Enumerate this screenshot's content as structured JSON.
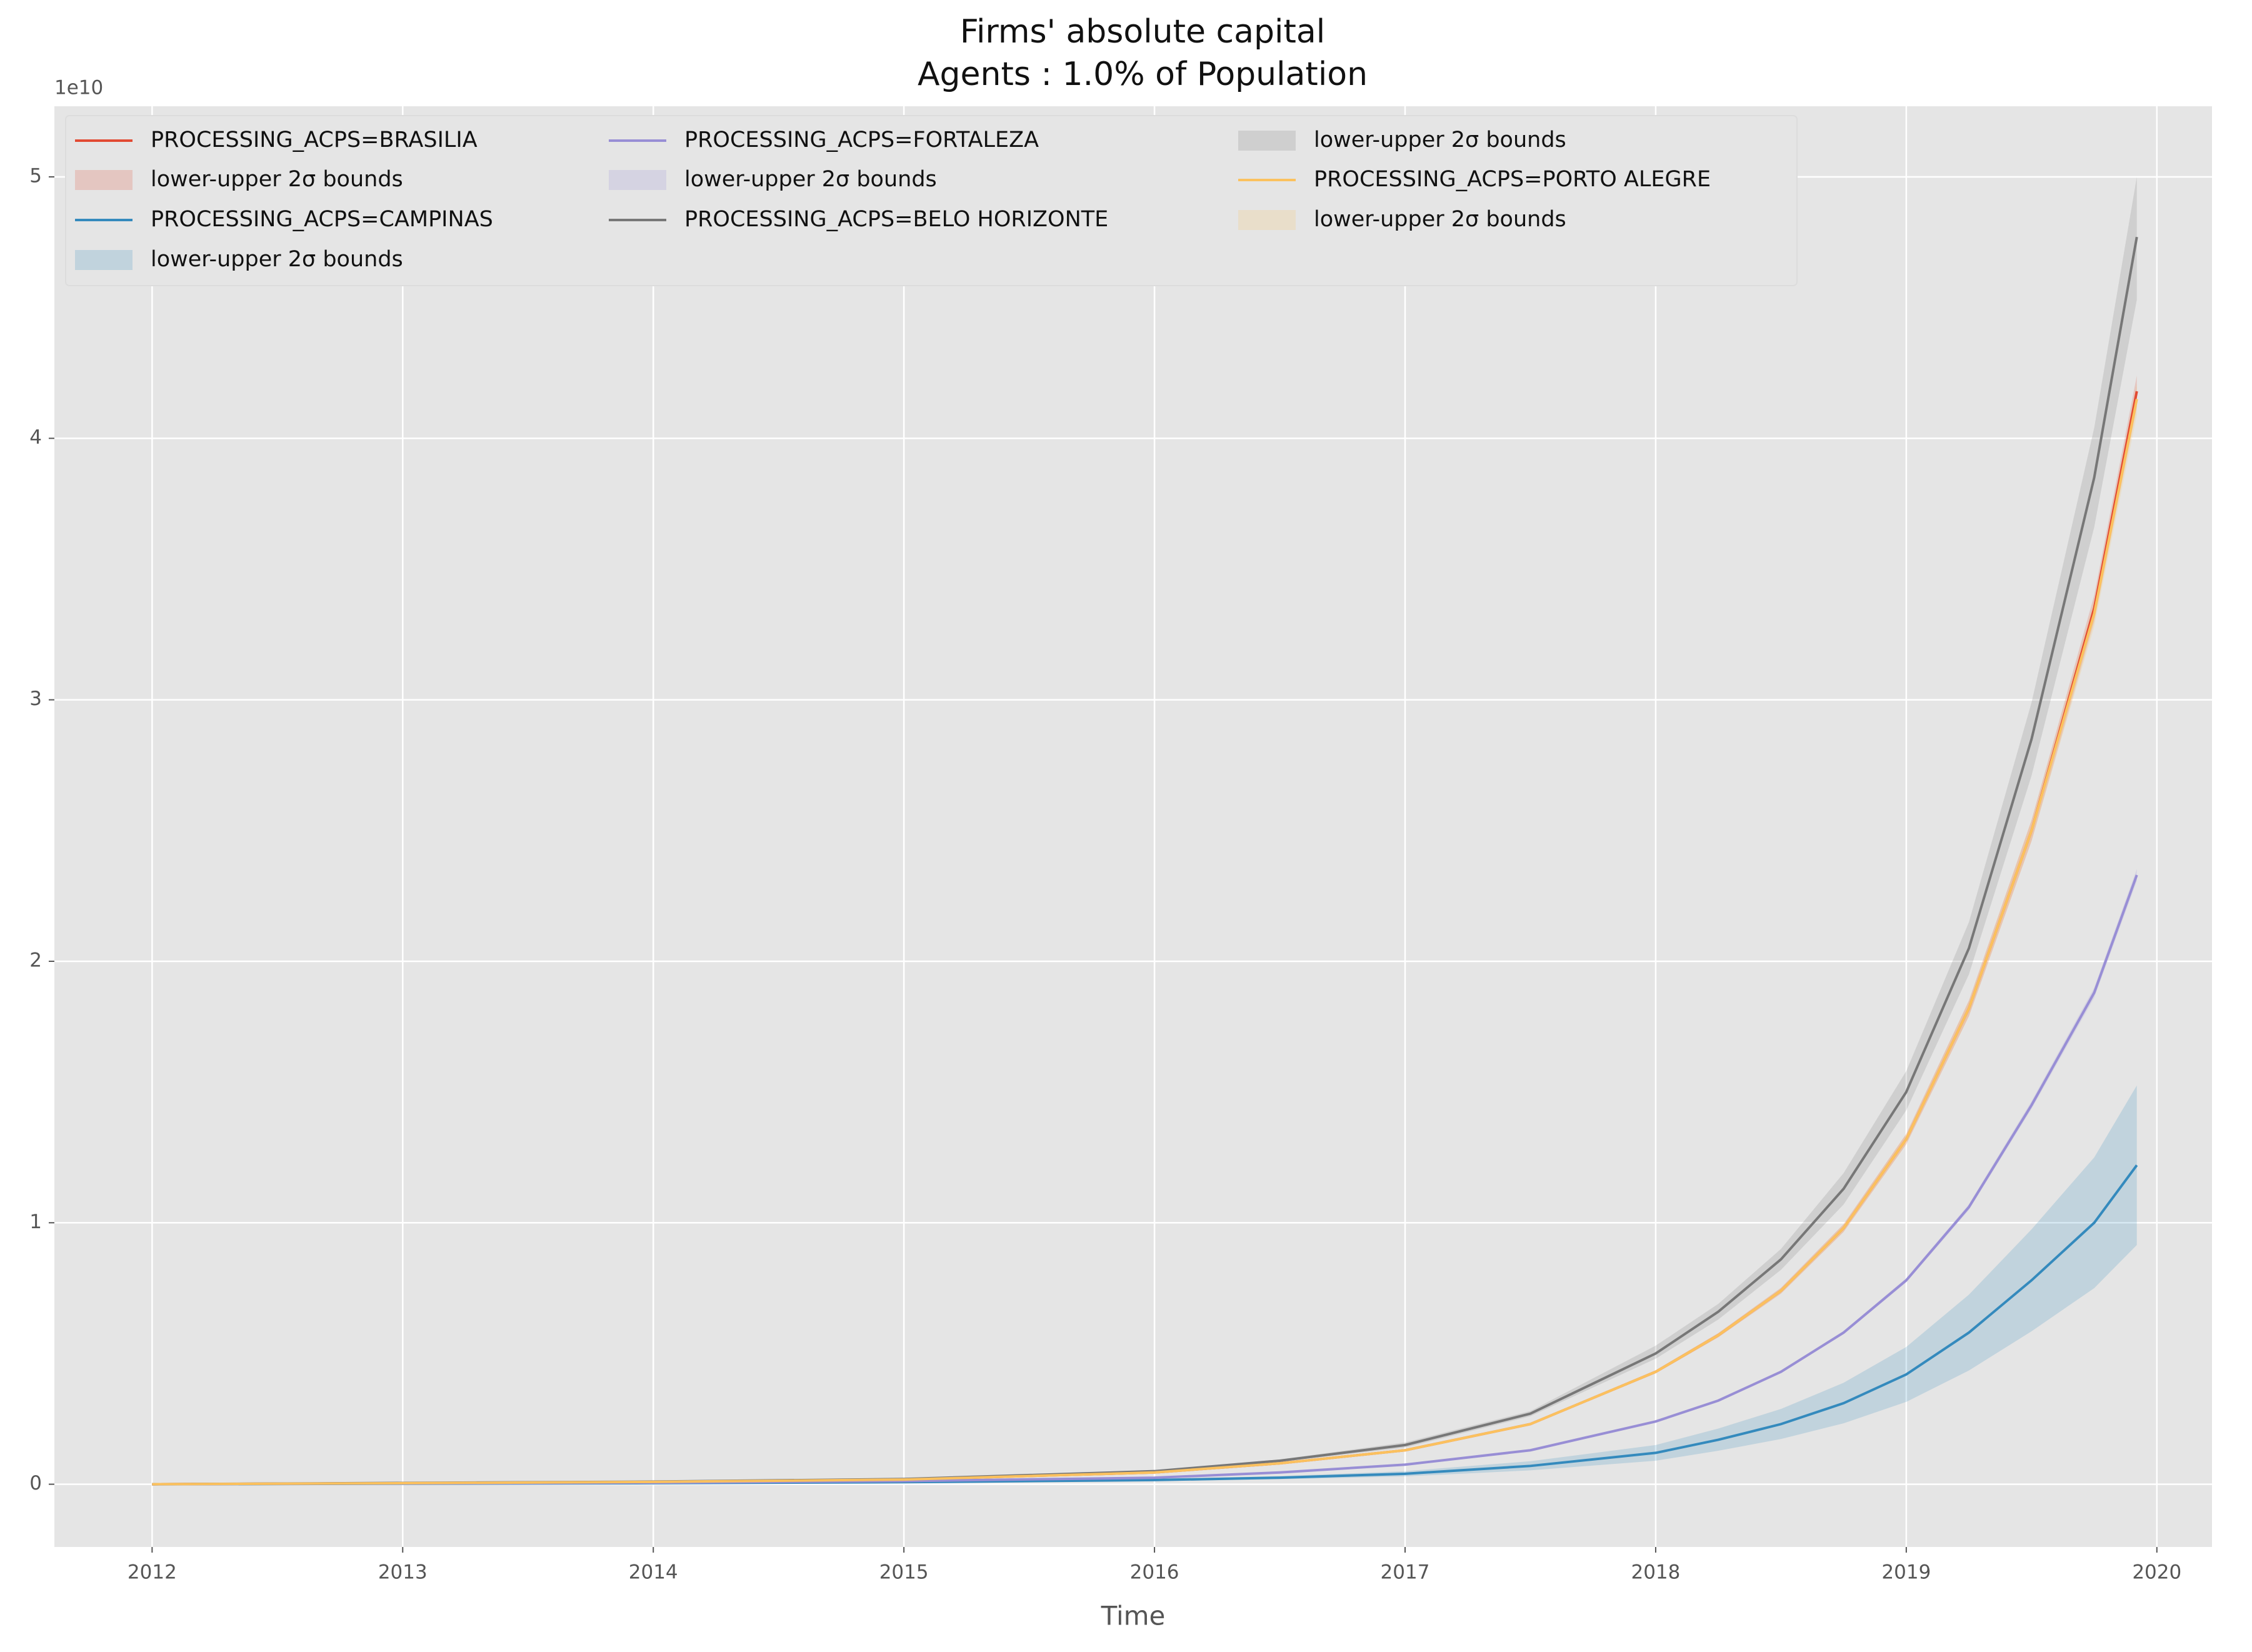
{
  "chart_data": {
    "type": "line",
    "title": "Firms' absolute capital",
    "subtitle": "Agents : 1.0% of Population",
    "xlabel": "Time",
    "y_offset_label": "1e10",
    "grid": true,
    "legend": "upper left",
    "x": [
      2012,
      2013,
      2014,
      2015,
      2016,
      2016.5,
      2017,
      2017.5,
      2018,
      2018.25,
      2018.5,
      2018.75,
      2019,
      2019.25,
      2019.5,
      2019.75,
      2019.92
    ],
    "xlim": [
      2011.61,
      2020.22
    ],
    "xticks": [
      2012,
      2013,
      2014,
      2015,
      2016,
      2017,
      2018,
      2019,
      2020
    ],
    "ylim": [
      -0.24,
      5.27
    ],
    "yticks": [
      0,
      1,
      2,
      3,
      4,
      5
    ],
    "series": [
      {
        "name": "PROCESSING_ACPS=BRASILIA",
        "band_name": "lower-upper 2σ bounds",
        "color": "#E24A33",
        "values": [
          0,
          0.004,
          0.009,
          0.018,
          0.045,
          0.08,
          0.13,
          0.23,
          0.43,
          0.57,
          0.74,
          0.98,
          1.32,
          1.82,
          2.5,
          3.35,
          4.18
        ],
        "lower": [
          0,
          0.004,
          0.009,
          0.018,
          0.044,
          0.079,
          0.128,
          0.227,
          0.424,
          0.562,
          0.729,
          0.965,
          1.3,
          1.79,
          2.46,
          3.3,
          4.12
        ],
        "upper": [
          0,
          0.004,
          0.009,
          0.018,
          0.046,
          0.081,
          0.132,
          0.233,
          0.436,
          0.578,
          0.751,
          0.995,
          1.34,
          1.85,
          2.54,
          3.4,
          4.24
        ]
      },
      {
        "name": "PROCESSING_ACPS=CAMPINAS",
        "band_name": "lower-upper 2σ bounds",
        "color": "#348ABD",
        "values": [
          0,
          0.002,
          0.004,
          0.008,
          0.016,
          0.025,
          0.04,
          0.07,
          0.12,
          0.17,
          0.23,
          0.31,
          0.42,
          0.58,
          0.78,
          1.0,
          1.22
        ],
        "lower": [
          0,
          0.0015,
          0.003,
          0.006,
          0.012,
          0.019,
          0.03,
          0.053,
          0.09,
          0.128,
          0.173,
          0.233,
          0.315,
          0.435,
          0.585,
          0.75,
          0.915
        ],
        "upper": [
          0,
          0.0025,
          0.005,
          0.01,
          0.02,
          0.031,
          0.05,
          0.088,
          0.15,
          0.213,
          0.288,
          0.388,
          0.525,
          0.725,
          0.975,
          1.25,
          1.525
        ]
      },
      {
        "name": "PROCESSING_ACPS=FORTALEZA",
        "band_name": "lower-upper 2σ bounds",
        "color": "#988ED5",
        "values": [
          0,
          0.003,
          0.006,
          0.012,
          0.025,
          0.045,
          0.075,
          0.13,
          0.24,
          0.32,
          0.43,
          0.58,
          0.78,
          1.06,
          1.45,
          1.88,
          2.33
        ],
        "lower": [
          0,
          0.003,
          0.006,
          0.012,
          0.025,
          0.045,
          0.074,
          0.129,
          0.238,
          0.317,
          0.426,
          0.574,
          0.772,
          1.049,
          1.436,
          1.861,
          2.307
        ],
        "upper": [
          0,
          0.003,
          0.006,
          0.012,
          0.025,
          0.045,
          0.076,
          0.131,
          0.242,
          0.323,
          0.434,
          0.586,
          0.788,
          1.071,
          1.465,
          1.899,
          2.353
        ]
      },
      {
        "name": "PROCESSING_ACPS=BELO HORIZONTE",
        "band_name": "lower-upper 2σ bounds",
        "color": "#777777",
        "values": [
          0,
          0.005,
          0.01,
          0.02,
          0.05,
          0.09,
          0.15,
          0.27,
          0.5,
          0.66,
          0.86,
          1.13,
          1.5,
          2.05,
          2.85,
          3.85,
          4.77
        ],
        "lower": [
          0,
          0.005,
          0.01,
          0.019,
          0.048,
          0.086,
          0.14,
          0.26,
          0.48,
          0.63,
          0.82,
          1.07,
          1.43,
          1.95,
          2.71,
          3.66,
          4.53
        ],
        "upper": [
          0,
          0.005,
          0.01,
          0.021,
          0.053,
          0.095,
          0.16,
          0.28,
          0.53,
          0.69,
          0.9,
          1.19,
          1.58,
          2.15,
          2.99,
          4.04,
          5.0
        ]
      },
      {
        "name": "PROCESSING_ACPS=PORTO ALEGRE",
        "band_name": "lower-upper 2σ bounds",
        "color": "#FBC15E",
        "values": [
          0,
          0.004,
          0.009,
          0.018,
          0.045,
          0.08,
          0.13,
          0.23,
          0.43,
          0.57,
          0.74,
          0.98,
          1.32,
          1.82,
          2.5,
          3.33,
          4.15
        ],
        "lower": [
          0,
          0.004,
          0.009,
          0.018,
          0.044,
          0.079,
          0.128,
          0.227,
          0.424,
          0.562,
          0.729,
          0.965,
          1.3,
          1.79,
          2.46,
          3.28,
          4.09
        ],
        "upper": [
          0,
          0.004,
          0.009,
          0.018,
          0.046,
          0.081,
          0.132,
          0.233,
          0.436,
          0.578,
          0.751,
          0.995,
          1.34,
          1.85,
          2.54,
          3.38,
          4.21
        ]
      }
    ]
  }
}
